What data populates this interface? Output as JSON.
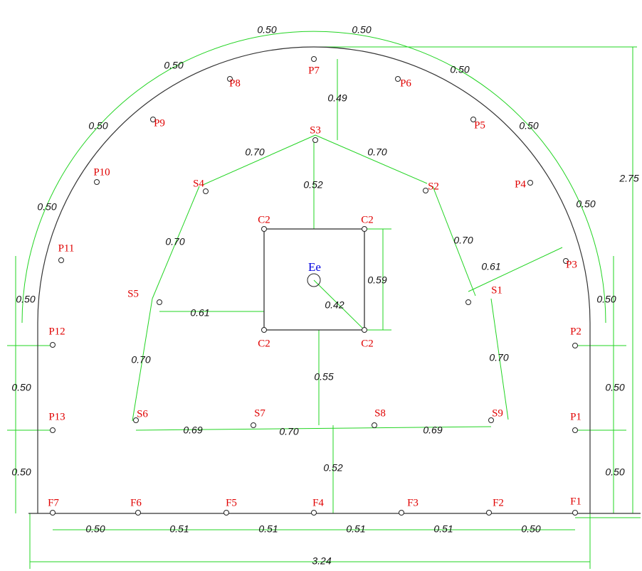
{
  "holes": [
    "P1",
    "P2",
    "P3",
    "P4",
    "P5",
    "P6",
    "P7",
    "P8",
    "P9",
    "P10",
    "P11",
    "P12",
    "P13",
    "S1",
    "S2",
    "S3",
    "S4",
    "S5",
    "S6",
    "S7",
    "S8",
    "S9",
    "F1",
    "F2",
    "F3",
    "F4",
    "F5",
    "F6",
    "F7",
    "C2",
    "C2",
    "C2",
    "C2",
    "Ee"
  ],
  "dimensions": [
    "0.50",
    "0.50",
    "0.50",
    "0.50",
    "0.50",
    "0.50",
    "0.50",
    "0.50",
    "0.50",
    "0.50",
    "0.50",
    "0.50",
    "0.50",
    "0.50",
    "0.50",
    "0.51",
    "0.51",
    "0.51",
    "0.51",
    "0.50",
    "3.24",
    "2.75",
    "0.49",
    "0.70",
    "0.70",
    "0.52",
    "0.70",
    "0.70",
    "0.61",
    "0.59",
    "0.42",
    "0.61",
    "0.70",
    "0.70",
    "0.55",
    "0.69",
    "0.70",
    "0.69",
    "0.52"
  ]
}
